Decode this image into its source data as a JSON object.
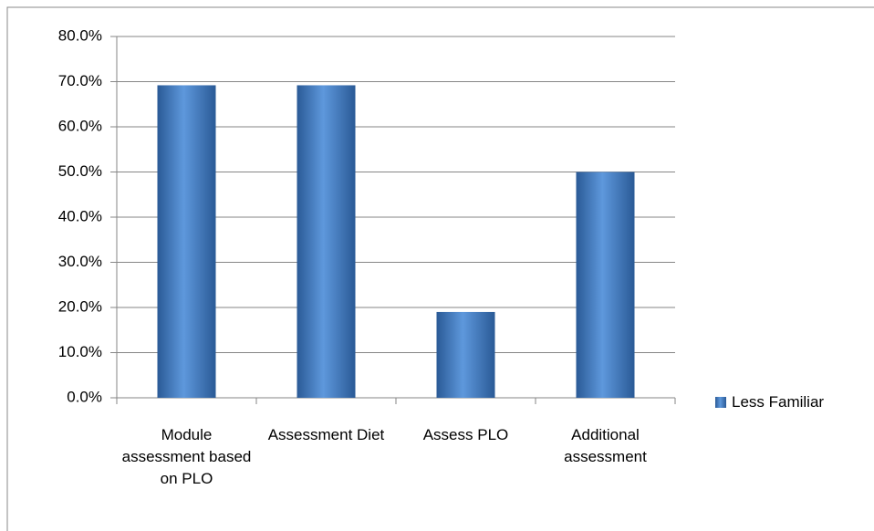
{
  "chart_data": {
    "type": "bar",
    "categories": [
      "Module assessment based on PLO",
      "Assessment Diet",
      "Assess PLO",
      "Additional assessment"
    ],
    "series": [
      {
        "name": "Less Familiar",
        "color": "#4f81bd",
        "values": [
          69.2,
          69.2,
          19,
          50
        ]
      }
    ],
    "ylim": [
      0,
      80
    ],
    "yticks": [
      {
        "value": 0,
        "label": "0.0%"
      },
      {
        "value": 10,
        "label": "10.0%"
      },
      {
        "value": 20,
        "label": "20.0%"
      },
      {
        "value": 30,
        "label": "30.0%"
      },
      {
        "value": 40,
        "label": "40.0%"
      },
      {
        "value": 50,
        "label": "50.0%"
      },
      {
        "value": 60,
        "label": "60.0%"
      },
      {
        "value": 70,
        "label": "70.0%"
      },
      {
        "value": 80,
        "label": "80.0%"
      }
    ],
    "grid": true,
    "legend": "right"
  }
}
